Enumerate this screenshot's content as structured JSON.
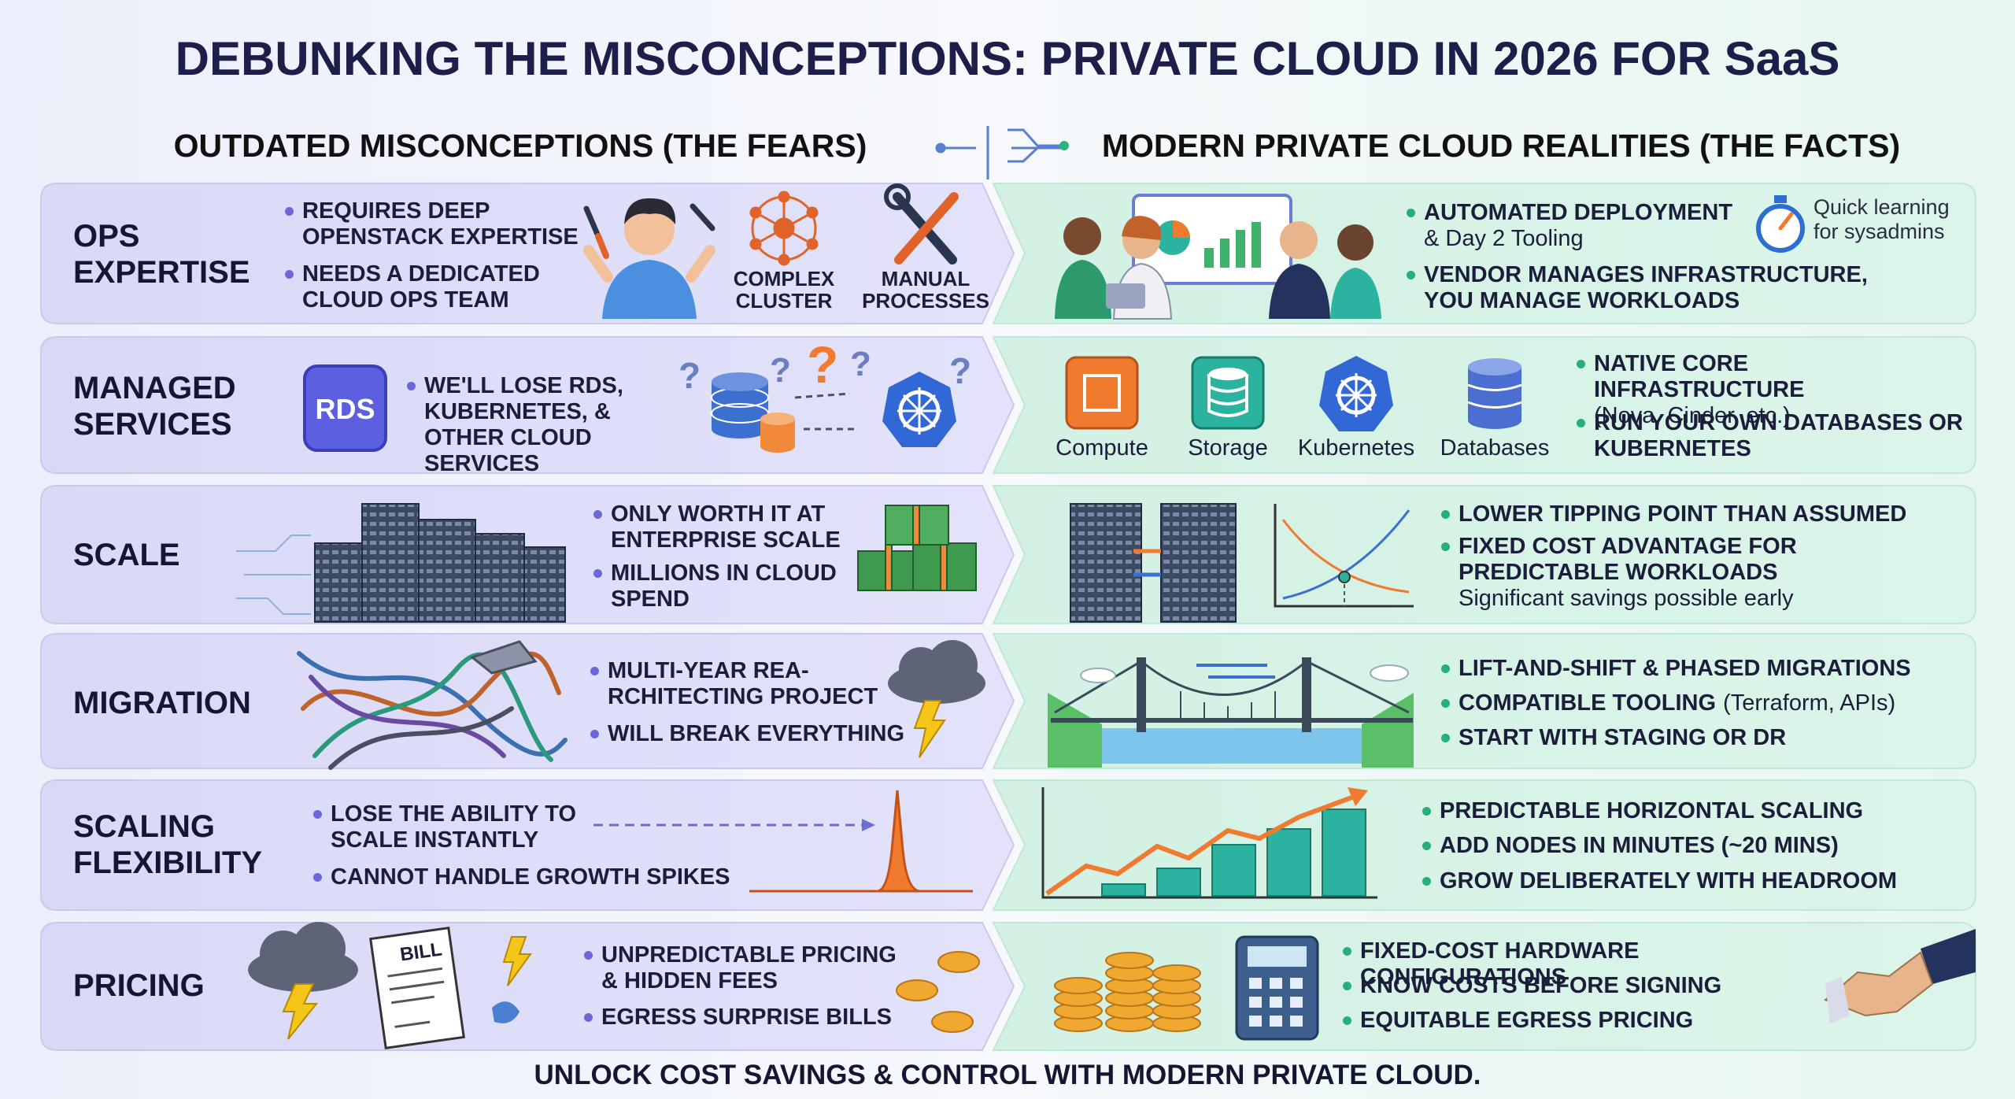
{
  "title": "DEBUNKING THE MISCONCEPTIONS: PRIVATE CLOUD IN 2026 FOR SaaS",
  "left_header": "OUTDATED MISCONCEPTIONS (THE FEARS)",
  "right_header": "MODERN PRIVATE CLOUD REALITIES (THE FACTS)",
  "rows": [
    {
      "label": "OPS EXPERTISE",
      "fears": [
        "REQUIRES DEEP OPENSTACK EXPERTISE",
        "NEEDS A DEDICATED CLOUD OPS TEAM"
      ],
      "fear_icons": [
        "COMPLEX CLUSTER",
        "MANUAL PROCESSES"
      ],
      "facts": [
        {
          "text": "AUTOMATED DEPLOYMENT",
          "detail": "& Day 2 Tooling"
        },
        {
          "text": "VENDOR MANAGES INFRASTRUCTURE, YOU MANAGE WORKLOADS"
        }
      ],
      "fact_note": "Quick learning for sysadmins"
    },
    {
      "label": "MANAGED SERVICES",
      "fear_badge": "RDS",
      "fear_mark": "?",
      "fears": [
        "WE'LL LOSE RDS, KUBERNETES, & OTHER CLOUD SERVICES"
      ],
      "fact_icons": [
        "Compute",
        "Storage",
        "Kubernetes",
        "Databases"
      ],
      "facts": [
        {
          "text": "NATIVE CORE INFRASTRUCTURE",
          "detail": "(Nova, Cinder, etc.)"
        },
        {
          "text": "RUN YOUR OWN DATABASES OR KUBERNETES"
        }
      ]
    },
    {
      "label": "SCALE",
      "fears": [
        "ONLY WORTH IT AT ENTERPRISE SCALE",
        "MILLIONS IN CLOUD SPEND"
      ],
      "facts": [
        {
          "text": "LOWER TIPPING POINT THAN ASSUMED"
        },
        {
          "text": "FIXED COST ADVANTAGE FOR PREDICTABLE WORKLOADS",
          "detail": "Significant savings possible early"
        }
      ]
    },
    {
      "label": "MIGRATION",
      "fears": [
        "MULTI-YEAR REA-RCHITECTING PROJECT",
        "WILL BREAK EVERYTHING"
      ],
      "facts": [
        {
          "text": "LIFT-AND-SHIFT & PHASED MIGRATIONS"
        },
        {
          "text": "COMPATIBLE TOOLING",
          "detail": "(Terraform, APIs)"
        },
        {
          "text": "START WITH STAGING OR DR"
        }
      ]
    },
    {
      "label": "SCALING FLEXIBILITY",
      "fears": [
        "LOSE THE ABILITY TO SCALE INSTANTLY",
        "CANNOT HANDLE GROWTH SPIKES"
      ],
      "facts": [
        {
          "text": "PREDICTABLE HORIZONTAL SCALING"
        },
        {
          "text": "ADD NODES IN MINUTES (~20 MINS)"
        },
        {
          "text": "GROW DELIBERATELY WITH HEADROOM"
        }
      ]
    },
    {
      "label": "PRICING",
      "fear_badge": "BILL",
      "fears": [
        "UNPREDICTABLE PRICING & HIDDEN FEES",
        "EGRESS SURPRISE BILLS"
      ],
      "facts": [
        {
          "text": "FIXED-COST HARDWARE CONFIGURATIONS"
        },
        {
          "text": "KNOW COSTS BEFORE SIGNING"
        },
        {
          "text": "EQUITABLE EGRESS PRICING"
        }
      ]
    }
  ],
  "footer": "UNLOCK COST SAVINGS & CONTROL WITH MODERN PRIVATE CLOUD."
}
